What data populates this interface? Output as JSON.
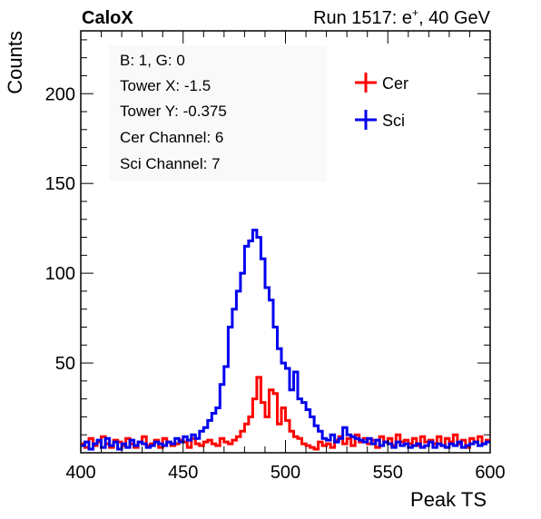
{
  "header": {
    "left": "CaloX",
    "right_prefix": "Run 1517: e",
    "right_sup": "+",
    "right_suffix": ", 40 GeV"
  },
  "info_lines": [
    "B: 1, G: 0",
    "Tower X: -1.5",
    "Tower Y: -0.375",
    "Cer Channel: 6",
    "Sci Channel: 7"
  ],
  "chart_data": {
    "type": "line",
    "xlabel": "Peak TS",
    "ylabel": "Counts",
    "xlim": [
      400,
      600
    ],
    "ylim": [
      0,
      235
    ],
    "xticks": [
      400,
      450,
      500,
      550,
      600
    ],
    "yticks": [
      50,
      100,
      150,
      200
    ],
    "bin_width": 2,
    "bin_start": 400,
    "legend_position": "top-right",
    "series": [
      {
        "name": "Cer",
        "color": "#ff0000",
        "values": [
          5,
          3,
          8,
          4,
          6,
          9,
          5,
          3,
          7,
          6,
          4,
          8,
          5,
          3,
          6,
          9,
          4,
          5,
          7,
          3,
          8,
          6,
          4,
          5,
          7,
          6,
          3,
          8,
          5,
          4,
          6,
          7,
          5,
          4,
          8,
          6,
          5,
          7,
          9,
          12,
          16,
          20,
          30,
          42,
          28,
          20,
          35,
          33,
          16,
          25,
          18,
          12,
          9,
          8,
          5,
          4,
          3,
          2,
          6,
          4,
          5,
          3,
          7,
          9,
          5,
          8,
          4,
          10,
          6,
          8,
          5,
          7,
          3,
          9,
          6,
          8,
          4,
          10,
          6,
          7,
          5,
          8,
          4,
          9,
          6,
          7,
          5,
          9,
          4,
          8,
          6,
          10,
          5,
          7,
          3,
          8,
          6,
          9,
          5,
          7
        ]
      },
      {
        "name": "Sci",
        "color": "#0000ee",
        "values": [
          4,
          6,
          2,
          5,
          7,
          3,
          8,
          4,
          6,
          2,
          5,
          3,
          7,
          4,
          6,
          5,
          3,
          4,
          6,
          5,
          4,
          6,
          5,
          8,
          6,
          9,
          7,
          10,
          8,
          12,
          14,
          18,
          22,
          25,
          38,
          48,
          70,
          80,
          90,
          100,
          115,
          118,
          124,
          120,
          108,
          92,
          85,
          70,
          58,
          50,
          47,
          35,
          45,
          30,
          28,
          24,
          20,
          15,
          12,
          8,
          7,
          10,
          6,
          8,
          14,
          10,
          9,
          8,
          7,
          6,
          8,
          5,
          7,
          4,
          6,
          5,
          3,
          6,
          4,
          5,
          3,
          4,
          5,
          3,
          4,
          6,
          3,
          5,
          4,
          3,
          5,
          4,
          6,
          3,
          4,
          5,
          6,
          4,
          5,
          6
        ]
      }
    ]
  }
}
